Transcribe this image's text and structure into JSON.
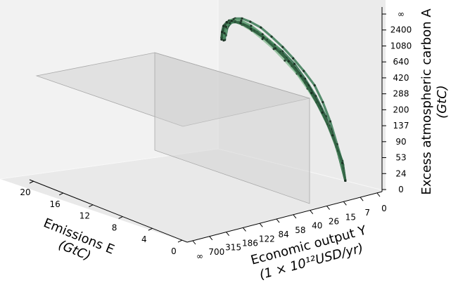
{
  "chart_data": {
    "type": "scatter",
    "title": "",
    "projection": "3d",
    "xlabel": "Emissions E",
    "xlabel_unit": "(GtC)",
    "ylabel": "Economic output Y",
    "ylabel_unit": "(1 × 10¹²USD/yr)",
    "zlabel": "Excess atmospheric carbon A",
    "zlabel_unit": "(GtC)",
    "x_ticks": [
      "0",
      "4",
      "8",
      "12",
      "16",
      "20"
    ],
    "y_ticks": [
      "0",
      "7",
      "15",
      "26",
      "40",
      "58",
      "84",
      "122",
      "186",
      "315",
      "700",
      "∞"
    ],
    "z_ticks": [
      "0",
      "24",
      "53",
      "90",
      "137",
      "200",
      "288",
      "420",
      "640",
      "1080",
      "2400",
      "∞"
    ],
    "grid": false,
    "boundary_planes": [
      {
        "kind": "horizontal",
        "z_value": "288"
      },
      {
        "kind": "vertical",
        "y_value": "122"
      }
    ],
    "series": [
      {
        "color": "#3a7a55",
        "points": [
          [
            0.7,
            10,
            20
          ],
          [
            1.0,
            10,
            40
          ],
          [
            1.5,
            11,
            70
          ],
          [
            2.1,
            12,
            110
          ],
          [
            2.8,
            13,
            150
          ],
          [
            3.6,
            14,
            190
          ],
          [
            4.5,
            16,
            230
          ],
          [
            5.4,
            18,
            270
          ],
          [
            6.3,
            20,
            310
          ],
          [
            7.1,
            23,
            355
          ],
          [
            7.7,
            27,
            405
          ],
          [
            8.0,
            33,
            450
          ],
          [
            8.0,
            40,
            490
          ],
          [
            7.6,
            50,
            520
          ],
          [
            6.8,
            62,
            535
          ],
          [
            5.8,
            80,
            535
          ],
          [
            4.7,
            100,
            522
          ]
        ]
      },
      {
        "color": "#2d6b4a",
        "points": [
          [
            0.7,
            10,
            20
          ],
          [
            1.1,
            10,
            45
          ],
          [
            1.7,
            12,
            80
          ],
          [
            2.4,
            13,
            120
          ],
          [
            3.2,
            15,
            165
          ],
          [
            4.1,
            17,
            210
          ],
          [
            5.0,
            19,
            255
          ],
          [
            5.9,
            22,
            300
          ],
          [
            6.7,
            26,
            345
          ],
          [
            7.3,
            31,
            395
          ],
          [
            7.7,
            37,
            440
          ],
          [
            7.7,
            45,
            480
          ],
          [
            7.3,
            56,
            508
          ],
          [
            6.5,
            70,
            520
          ],
          [
            5.5,
            88,
            518
          ],
          [
            4.3,
            110,
            505
          ]
        ]
      },
      {
        "color": "#5a9b6e",
        "points": [
          [
            0.7,
            10,
            20
          ],
          [
            1.2,
            11,
            50
          ],
          [
            1.9,
            12,
            90
          ],
          [
            2.7,
            14,
            135
          ],
          [
            3.6,
            16,
            180
          ],
          [
            4.6,
            18,
            225
          ],
          [
            5.6,
            21,
            275
          ],
          [
            6.5,
            24,
            325
          ],
          [
            7.3,
            28,
            375
          ],
          [
            7.9,
            33,
            425
          ],
          [
            8.1,
            40,
            470
          ],
          [
            7.9,
            49,
            505
          ],
          [
            7.3,
            60,
            528
          ],
          [
            6.4,
            75,
            540
          ],
          [
            5.3,
            95,
            540
          ],
          [
            4.2,
            118,
            530
          ]
        ]
      },
      {
        "color": "#1f3d2b",
        "points": [
          [
            0.7,
            10,
            20
          ],
          [
            1.3,
            11,
            55
          ],
          [
            2.0,
            12,
            95
          ],
          [
            2.9,
            14,
            140
          ],
          [
            3.9,
            16,
            190
          ],
          [
            4.9,
            19,
            240
          ],
          [
            5.9,
            22,
            290
          ],
          [
            6.8,
            26,
            340
          ],
          [
            7.5,
            31,
            390
          ],
          [
            7.9,
            38,
            440
          ],
          [
            7.9,
            47,
            482
          ],
          [
            7.4,
            59,
            512
          ],
          [
            6.6,
            74,
            528
          ],
          [
            5.6,
            92,
            530
          ],
          [
            4.5,
            115,
            522
          ]
        ]
      },
      {
        "color": "#8fbf9a",
        "points": [
          [
            0.7,
            10,
            20
          ],
          [
            1.0,
            10,
            35
          ],
          [
            1.6,
            11,
            65
          ],
          [
            2.3,
            12,
            100
          ],
          [
            3.1,
            14,
            140
          ],
          [
            4.0,
            16,
            180
          ],
          [
            4.9,
            18,
            220
          ],
          [
            5.8,
            21,
            262
          ],
          [
            6.6,
            24,
            305
          ],
          [
            7.3,
            28,
            350
          ],
          [
            7.8,
            33,
            398
          ],
          [
            8.0,
            40,
            445
          ],
          [
            7.8,
            48,
            488
          ],
          [
            7.3,
            58,
            520
          ],
          [
            6.5,
            70,
            540
          ],
          [
            5.5,
            86,
            548
          ],
          [
            4.5,
            106,
            545
          ]
        ]
      },
      {
        "color": "#4a8a60",
        "points": [
          [
            0.7,
            10,
            20
          ],
          [
            1.4,
            11,
            60
          ],
          [
            2.2,
            13,
            105
          ],
          [
            3.1,
            15,
            150
          ],
          [
            4.1,
            17,
            198
          ],
          [
            5.1,
            20,
            248
          ],
          [
            6.0,
            23,
            298
          ],
          [
            6.9,
            27,
            350
          ],
          [
            7.5,
            33,
            402
          ],
          [
            7.8,
            40,
            450
          ],
          [
            7.6,
            50,
            492
          ],
          [
            7.0,
            62,
            520
          ],
          [
            6.1,
            78,
            534
          ],
          [
            5.0,
            98,
            532
          ],
          [
            3.9,
            122,
            520
          ]
        ]
      },
      {
        "color": "#2f5e3f",
        "points": [
          [
            0.7,
            10,
            20
          ],
          [
            1.1,
            10,
            42
          ],
          [
            1.8,
            12,
            85
          ],
          [
            2.6,
            14,
            128
          ],
          [
            3.5,
            16,
            172
          ],
          [
            4.4,
            18,
            218
          ],
          [
            5.3,
            21,
            265
          ],
          [
            6.2,
            25,
            315
          ],
          [
            7.0,
            29,
            365
          ],
          [
            7.6,
            35,
            415
          ],
          [
            7.9,
            42,
            462
          ],
          [
            7.8,
            52,
            500
          ],
          [
            7.2,
            64,
            525
          ],
          [
            6.3,
            80,
            538
          ],
          [
            5.2,
            100,
            538
          ],
          [
            4.0,
            126,
            528
          ]
        ]
      }
    ]
  }
}
